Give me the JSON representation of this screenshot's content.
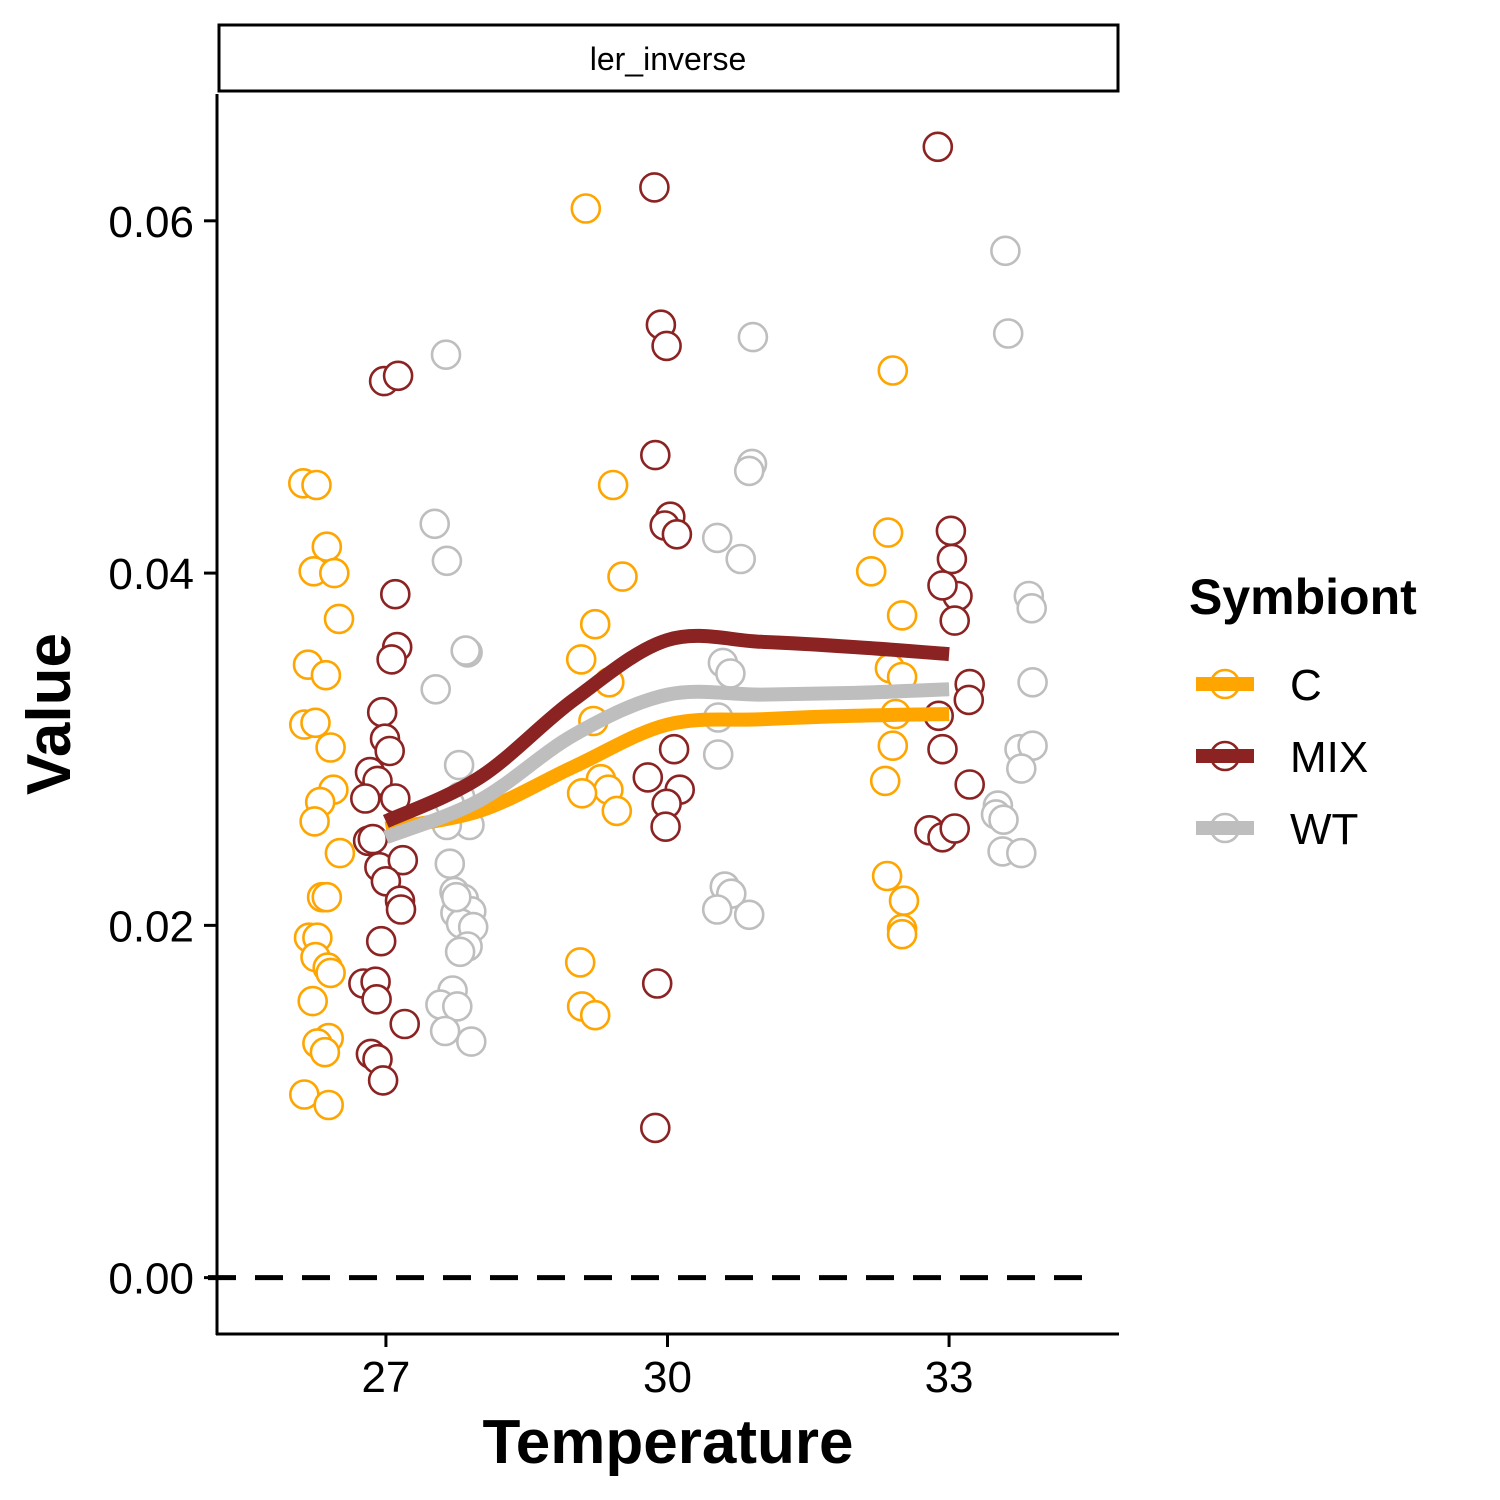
{
  "chart_data": {
    "type": "scatter",
    "facet_label": "ler_inverse",
    "xlabel": "Temperature",
    "ylabel": "Value",
    "x_ticks": [
      27,
      30,
      33
    ],
    "y_ticks": [
      0.0,
      0.02,
      0.04,
      0.06
    ],
    "y_tick_labels": [
      "0.00",
      "0.02",
      "0.04",
      "0.06"
    ],
    "xlim": [
      25.2,
      34.8
    ],
    "ylim": [
      -0.0032,
      0.0672
    ],
    "reference_line": {
      "y": 0,
      "style": "dashed"
    },
    "legend": {
      "title": "Symbiont",
      "position": "right"
    },
    "grid": false,
    "series": [
      {
        "name": "C",
        "color": "#FFA500",
        "points": [
          [
            26.12,
            0.0451
          ],
          [
            26.26,
            0.045
          ],
          [
            26.37,
            0.0415
          ],
          [
            26.23,
            0.0401
          ],
          [
            26.45,
            0.04
          ],
          [
            26.5,
            0.0374
          ],
          [
            26.17,
            0.0348
          ],
          [
            26.36,
            0.0342
          ],
          [
            26.13,
            0.0314
          ],
          [
            26.25,
            0.0315
          ],
          [
            26.41,
            0.0301
          ],
          [
            26.44,
            0.0277
          ],
          [
            26.3,
            0.027
          ],
          [
            26.24,
            0.0259
          ],
          [
            26.51,
            0.0241
          ],
          [
            26.32,
            0.0216
          ],
          [
            26.37,
            0.0216
          ],
          [
            26.18,
            0.0193
          ],
          [
            26.27,
            0.0193
          ],
          [
            26.25,
            0.0182
          ],
          [
            26.38,
            0.0176
          ],
          [
            26.41,
            0.0173
          ],
          [
            26.22,
            0.0157
          ],
          [
            26.39,
            0.0136
          ],
          [
            26.27,
            0.0133
          ],
          [
            26.35,
            0.0128
          ],
          [
            26.13,
            0.0104
          ],
          [
            26.39,
            0.0098
          ],
          [
            29.13,
            0.0607
          ],
          [
            29.42,
            0.045
          ],
          [
            29.52,
            0.0398
          ],
          [
            29.23,
            0.0371
          ],
          [
            29.08,
            0.0351
          ],
          [
            29.38,
            0.0338
          ],
          [
            29.21,
            0.0316
          ],
          [
            29.29,
            0.0283
          ],
          [
            29.37,
            0.0277
          ],
          [
            29.09,
            0.0275
          ],
          [
            29.46,
            0.0265
          ],
          [
            29.07,
            0.0179
          ],
          [
            29.09,
            0.0154
          ],
          [
            29.23,
            0.0149
          ],
          [
            32.4,
            0.0515
          ],
          [
            32.17,
            0.0401
          ],
          [
            32.35,
            0.0423
          ],
          [
            32.5,
            0.0376
          ],
          [
            32.37,
            0.0346
          ],
          [
            32.5,
            0.0341
          ],
          [
            32.43,
            0.032
          ],
          [
            32.4,
            0.0302
          ],
          [
            32.32,
            0.0282
          ],
          [
            32.34,
            0.0228
          ],
          [
            32.52,
            0.0214
          ],
          [
            32.5,
            0.0198
          ],
          [
            32.5,
            0.0195
          ]
        ],
        "trend": [
          [
            27,
            0.0255
          ],
          [
            28,
            0.0265
          ],
          [
            29,
            0.029
          ],
          [
            30,
            0.0314
          ],
          [
            31,
            0.0317
          ],
          [
            32,
            0.0319
          ],
          [
            33,
            0.032
          ]
        ]
      },
      {
        "name": "MIX",
        "color": "#8B2323",
        "points": [
          [
            26.98,
            0.0509
          ],
          [
            27.13,
            0.0512
          ],
          [
            27.1,
            0.0388
          ],
          [
            27.12,
            0.0358
          ],
          [
            27.06,
            0.0351
          ],
          [
            26.96,
            0.0321
          ],
          [
            26.99,
            0.0306
          ],
          [
            27.04,
            0.0299
          ],
          [
            26.83,
            0.0287
          ],
          [
            26.91,
            0.0282
          ],
          [
            27.1,
            0.0272
          ],
          [
            26.78,
            0.0272
          ],
          [
            26.81,
            0.0248
          ],
          [
            26.86,
            0.0249
          ],
          [
            26.93,
            0.0233
          ],
          [
            27.18,
            0.0237
          ],
          [
            27.0,
            0.0225
          ],
          [
            27.15,
            0.0214
          ],
          [
            27.16,
            0.0209
          ],
          [
            26.95,
            0.0191
          ],
          [
            26.76,
            0.0167
          ],
          [
            26.89,
            0.0168
          ],
          [
            26.9,
            0.0158
          ],
          [
            27.2,
            0.0144
          ],
          [
            26.84,
            0.0127
          ],
          [
            26.91,
            0.0124
          ],
          [
            26.97,
            0.0112
          ],
          [
            29.86,
            0.0619
          ],
          [
            29.93,
            0.0541
          ],
          [
            29.99,
            0.0529
          ],
          [
            29.87,
            0.0467
          ],
          [
            30.03,
            0.0432
          ],
          [
            29.97,
            0.0427
          ],
          [
            30.1,
            0.0422
          ],
          [
            30.07,
            0.03
          ],
          [
            29.79,
            0.0284
          ],
          [
            30.13,
            0.0277
          ],
          [
            29.99,
            0.0269
          ],
          [
            29.98,
            0.0256
          ],
          [
            29.89,
            0.0167
          ],
          [
            29.87,
            0.0085
          ],
          [
            32.88,
            0.0642
          ],
          [
            33.02,
            0.0424
          ],
          [
            33.03,
            0.0408
          ],
          [
            33.09,
            0.0387
          ],
          [
            32.93,
            0.0393
          ],
          [
            33.06,
            0.0373
          ],
          [
            33.22,
            0.0337
          ],
          [
            33.21,
            0.0328
          ],
          [
            32.89,
            0.0319
          ],
          [
            32.93,
            0.03
          ],
          [
            33.22,
            0.028
          ],
          [
            32.79,
            0.0254
          ],
          [
            32.93,
            0.025
          ],
          [
            33.06,
            0.0255
          ]
        ],
        "trend": [
          [
            27,
            0.0259
          ],
          [
            28,
            0.0284
          ],
          [
            29,
            0.0328
          ],
          [
            30,
            0.0362
          ],
          [
            31,
            0.0361
          ],
          [
            32,
            0.0358
          ],
          [
            33,
            0.0354
          ]
        ]
      },
      {
        "name": "WT",
        "color": "#BEBEBE",
        "points": [
          [
            27.64,
            0.0524
          ],
          [
            27.52,
            0.0428
          ],
          [
            27.65,
            0.0407
          ],
          [
            27.87,
            0.0355
          ],
          [
            27.85,
            0.0356
          ],
          [
            27.53,
            0.0334
          ],
          [
            27.78,
            0.0291
          ],
          [
            27.79,
            0.0273
          ],
          [
            27.68,
            0.0269
          ],
          [
            27.89,
            0.0257
          ],
          [
            27.65,
            0.0257
          ],
          [
            27.68,
            0.0235
          ],
          [
            27.73,
            0.0219
          ],
          [
            27.83,
            0.0215
          ],
          [
            27.74,
            0.0207
          ],
          [
            27.91,
            0.0208
          ],
          [
            27.8,
            0.0201
          ],
          [
            27.93,
            0.0199
          ],
          [
            27.87,
            0.0188
          ],
          [
            27.79,
            0.0185
          ],
          [
            27.71,
            0.0163
          ],
          [
            27.58,
            0.0155
          ],
          [
            27.76,
            0.0154
          ],
          [
            27.63,
            0.014
          ],
          [
            27.91,
            0.0134
          ],
          [
            27.75,
            0.0216
          ],
          [
            30.91,
            0.0534
          ],
          [
            30.9,
            0.0462
          ],
          [
            30.87,
            0.0458
          ],
          [
            30.53,
            0.042
          ],
          [
            30.78,
            0.0408
          ],
          [
            30.59,
            0.0349
          ],
          [
            30.67,
            0.0343
          ],
          [
            30.54,
            0.0318
          ],
          [
            30.54,
            0.0297
          ],
          [
            30.61,
            0.0222
          ],
          [
            30.68,
            0.0218
          ],
          [
            30.53,
            0.0209
          ],
          [
            30.87,
            0.0206
          ],
          [
            33.6,
            0.0583
          ],
          [
            33.63,
            0.0536
          ],
          [
            33.85,
            0.0387
          ],
          [
            33.88,
            0.038
          ],
          [
            33.89,
            0.0338
          ],
          [
            33.75,
            0.03
          ],
          [
            33.89,
            0.0302
          ],
          [
            33.77,
            0.0289
          ],
          [
            33.52,
            0.0268
          ],
          [
            33.5,
            0.0263
          ],
          [
            33.58,
            0.026
          ],
          [
            33.57,
            0.0242
          ],
          [
            33.77,
            0.0241
          ]
        ],
        "trend": [
          [
            27,
            0.025
          ],
          [
            28,
            0.0271
          ],
          [
            29,
            0.0308
          ],
          [
            30,
            0.0331
          ],
          [
            31,
            0.0331
          ],
          [
            32,
            0.0332
          ],
          [
            33,
            0.0334
          ]
        ]
      }
    ]
  }
}
